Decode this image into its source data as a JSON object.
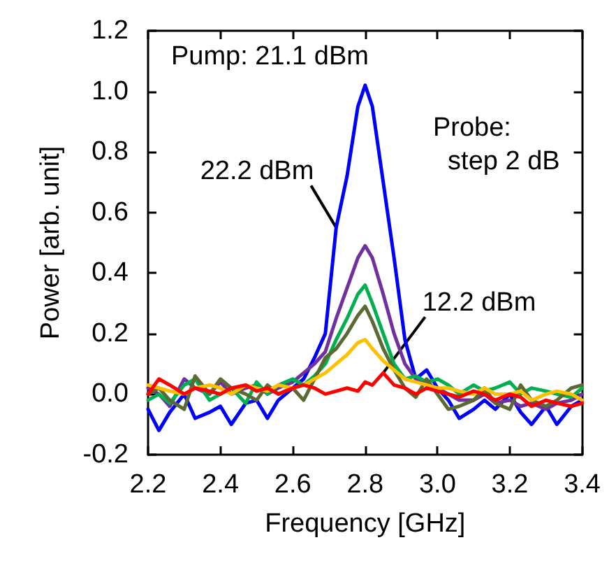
{
  "chart_data": {
    "type": "line",
    "xlabel": "Frequency [GHz]",
    "ylabel": "Power [arb. unit]",
    "xlim": [
      2.2,
      3.4
    ],
    "xticks": [
      {
        "value": 2.2,
        "label": "2.2"
      },
      {
        "value": 2.4,
        "label": "2.4"
      },
      {
        "value": 2.6,
        "label": "2.6"
      },
      {
        "value": 2.8,
        "label": "2.8"
      },
      {
        "value": 3.0,
        "label": "3.0"
      },
      {
        "value": 3.2,
        "label": "3.2"
      },
      {
        "value": 3.4,
        "label": "3.4"
      }
    ],
    "ylim": [
      -0.2,
      1.2
    ],
    "yticks": [
      {
        "value": -0.2,
        "label": "-0.2"
      },
      {
        "value": 0,
        "label": "0.0"
      },
      {
        "value": 0.2,
        "label": "0.2"
      },
      {
        "value": 0.4,
        "label": "0.4"
      },
      {
        "value": 0.6,
        "label": "0.6"
      },
      {
        "value": 0.8,
        "label": "0.8"
      },
      {
        "value": 1.0,
        "label": "1.0"
      },
      {
        "value": 1.2,
        "label": "1.2"
      }
    ],
    "grid": false,
    "marker": "none",
    "line_style": "solid",
    "x": [
      2.2,
      2.23,
      2.26,
      2.3,
      2.33,
      2.37,
      2.4,
      2.43,
      2.47,
      2.5,
      2.53,
      2.56,
      2.6,
      2.63,
      2.66,
      2.69,
      2.72,
      2.75,
      2.78,
      2.8,
      2.82,
      2.85,
      2.88,
      2.91,
      2.94,
      2.97,
      3.0,
      3.03,
      3.06,
      3.1,
      3.13,
      3.16,
      3.2,
      3.23,
      3.26,
      3.3,
      3.33,
      3.37,
      3.4
    ],
    "series": [
      {
        "color": "#0000ff",
        "values": [
          -0.05,
          -0.12,
          -0.06,
          0.0,
          -0.08,
          -0.06,
          -0.04,
          -0.1,
          -0.03,
          -0.02,
          -0.08,
          -0.02,
          0.02,
          0.05,
          0.12,
          0.2,
          0.55,
          0.72,
          0.95,
          1.02,
          0.95,
          0.7,
          0.45,
          0.18,
          0.05,
          0.08,
          0.02,
          -0.02,
          -0.08,
          -0.05,
          -0.02,
          -0.05,
          0.0,
          -0.06,
          -0.1,
          -0.04,
          -0.1,
          -0.04,
          -0.02
        ]
      },
      {
        "color": "#7030a0",
        "values": [
          0.02,
          0.0,
          -0.04,
          0.05,
          0.02,
          0.0,
          0.04,
          0.0,
          0.02,
          0.03,
          0.0,
          0.02,
          0.04,
          0.07,
          0.1,
          0.14,
          0.25,
          0.35,
          0.45,
          0.49,
          0.45,
          0.33,
          0.2,
          0.1,
          0.05,
          0.03,
          0.02,
          0.0,
          -0.02,
          -0.02,
          0.0,
          -0.03,
          -0.02,
          -0.04,
          -0.03,
          -0.05,
          -0.03,
          -0.02,
          0.0
        ]
      },
      {
        "color": "#00b050",
        "values": [
          -0.02,
          0.0,
          -0.03,
          0.03,
          0.05,
          -0.02,
          0.0,
          0.02,
          -0.03,
          0.04,
          0.0,
          0.03,
          0.05,
          0.03,
          0.06,
          0.1,
          0.18,
          0.25,
          0.33,
          0.36,
          0.3,
          0.2,
          0.1,
          0.05,
          0.06,
          0.04,
          0.05,
          0.03,
          0.0,
          0.03,
          0.01,
          0.02,
          0.04,
          0.0,
          0.02,
          0.01,
          0.0,
          -0.01,
          0.02
        ]
      },
      {
        "color": "#5a6a32",
        "values": [
          0.0,
          0.02,
          -0.02,
          -0.05,
          0.06,
          0.0,
          0.05,
          0.02,
          0.0,
          -0.02,
          0.03,
          0.0,
          0.02,
          -0.02,
          0.05,
          0.12,
          0.15,
          0.2,
          0.26,
          0.29,
          0.24,
          0.15,
          0.08,
          0.02,
          -0.01,
          0.05,
          0.0,
          -0.05,
          -0.04,
          -0.02,
          0.02,
          -0.03,
          -0.05,
          0.03,
          -0.02,
          -0.04,
          -0.02,
          0.02,
          0.03
        ]
      },
      {
        "color": "#ffc000",
        "values": [
          0.03,
          0.02,
          0.01,
          0.0,
          0.02,
          0.03,
          0.02,
          0.0,
          0.03,
          0.02,
          0.01,
          0.03,
          0.02,
          0.03,
          0.05,
          0.07,
          0.1,
          0.13,
          0.17,
          0.18,
          0.15,
          0.11,
          0.08,
          0.05,
          0.04,
          0.03,
          0.02,
          0.02,
          0.01,
          0.0,
          0.02,
          0.0,
          0.0,
          0.01,
          -0.02,
          0.0,
          0.01,
          0.0,
          -0.02
        ]
      },
      {
        "color": "#ff0000",
        "values": [
          0.0,
          0.05,
          0.03,
          0.0,
          0.02,
          0.01,
          0.0,
          0.02,
          0.03,
          0.01,
          0.02,
          0.0,
          0.02,
          0.03,
          0.02,
          0.0,
          0.01,
          0.02,
          0.01,
          0.04,
          0.03,
          0.07,
          0.03,
          0.02,
          0.0,
          0.02,
          0.01,
          0.0,
          -0.01,
          0.01,
          0.0,
          -0.02,
          0.0,
          -0.01,
          -0.04,
          -0.02,
          -0.03,
          -0.04,
          -0.03
        ]
      }
    ],
    "annotations": [
      "Pump: 21.1 dBm",
      "Probe:\n  step 2 dB",
      {
        "text": "22.2 dBm",
        "x": 2.72,
        "y": 0.55
      },
      {
        "text": "12.2 dBm",
        "x": 2.85,
        "y": 0.07
      }
    ]
  }
}
